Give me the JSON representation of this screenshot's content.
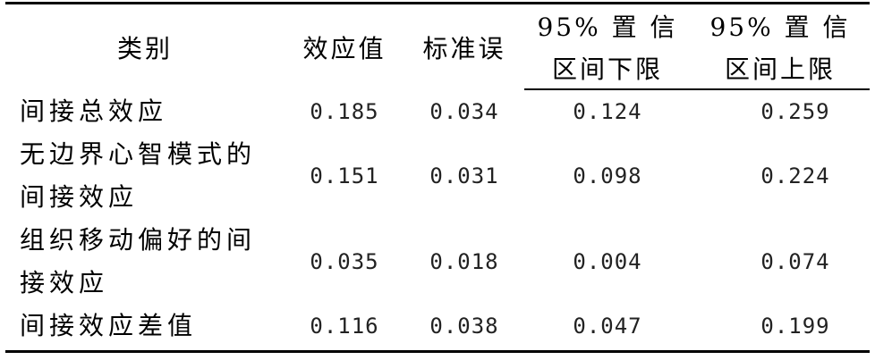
{
  "table": {
    "headers": {
      "category": "类别",
      "effect": "效应值",
      "se": "标准误",
      "ci_lower_line1": "95% 置 信",
      "ci_lower_line2": "区间下限",
      "ci_upper_line1": "95% 置 信",
      "ci_upper_line2": "区间上限"
    },
    "rows": [
      {
        "category": "间接总效应",
        "effect": "0.185",
        "se": "0.034",
        "lower": "0.124",
        "upper": "0.259"
      },
      {
        "category": "无边界心智模式的间接效应",
        "effect": "0.151",
        "se": "0.031",
        "lower": "0.098",
        "upper": "0.224"
      },
      {
        "category": "组织移动偏好的间接效应",
        "effect": "0.035",
        "se": "0.018",
        "lower": "0.004",
        "upper": "0.074"
      },
      {
        "category": "间接效应差值",
        "effect": "0.116",
        "se": "0.038",
        "lower": "0.047",
        "upper": "0.199"
      }
    ]
  }
}
